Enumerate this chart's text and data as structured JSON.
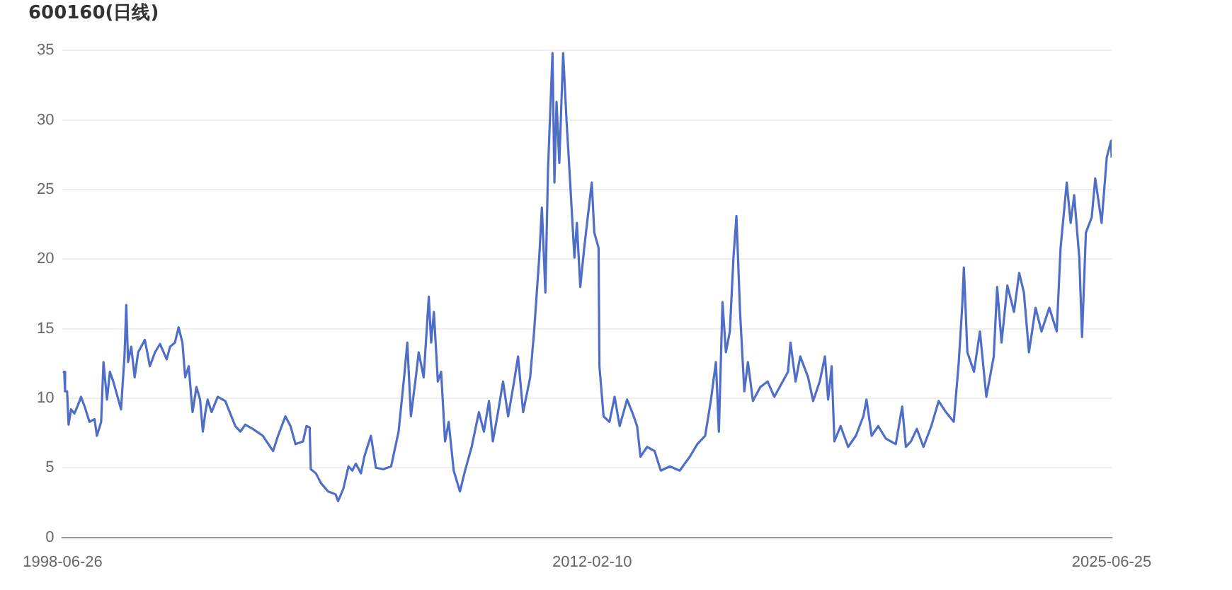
{
  "chart_data": {
    "type": "line",
    "title": "600160(日线)",
    "x": [
      "1998-06-26",
      "1998-07-11",
      "1998-07-19",
      "1998-08-07",
      "1998-08-21",
      "1998-09-13",
      "1998-10-15",
      "1998-12-02",
      "1998-12-16",
      "1999-01-19",
      "1999-03-05",
      "1999-04-22",
      "1999-05-14",
      "1999-06-23",
      "1999-07-15",
      "1999-08-17",
      "1999-09-13",
      "1999-10-15",
      "1999-11-10",
      "1999-12-27",
      "2000-01-29",
      "2000-02-14",
      "2000-03-02",
      "2000-04-01",
      "2000-05-03",
      "2000-06-05",
      "2000-08-07",
      "2000-09-23",
      "2000-11-10",
      "2000-12-27",
      "2001-02-28",
      "2001-04-01",
      "2001-05-17",
      "2001-06-20",
      "2001-07-26",
      "2001-08-21",
      "2001-09-23",
      "2001-10-29",
      "2001-12-05",
      "2002-01-08",
      "2002-02-03",
      "2002-02-25",
      "2002-03-20",
      "2002-04-26",
      "2002-06-23",
      "2002-09-02",
      "2002-10-19",
      "2002-12-05",
      "2003-01-22",
      "2003-03-09",
      "2003-05-17",
      "2003-08-21",
      "2003-11-25",
      "2004-01-11",
      "2004-03-20",
      "2004-05-07",
      "2004-06-23",
      "2004-09-02",
      "2004-10-04",
      "2004-11-03",
      "2004-11-14",
      "2005-01-01",
      "2005-02-17",
      "2005-04-26",
      "2005-07-04",
      "2005-07-29",
      "2005-09-16",
      "2005-11-03",
      "2005-12-09",
      "2006-01-11",
      "2006-02-28",
      "2006-04-01",
      "2006-06-02",
      "2006-07-19",
      "2006-09-27",
      "2006-12-09",
      "2007-02-17",
      "2007-04-15",
      "2007-05-10",
      "2007-06-13",
      "2007-07-29",
      "2007-08-25",
      "2007-10-11",
      "2007-11-28",
      "2007-12-20",
      "2008-01-15",
      "2008-02-21",
      "2008-03-23",
      "2008-04-29",
      "2008-06-02",
      "2008-07-19",
      "2008-09-16",
      "2008-11-03",
      "2009-01-04",
      "2009-03-13",
      "2009-04-29",
      "2009-06-16",
      "2009-07-22",
      "2009-09-09",
      "2009-10-26",
      "2009-12-13",
      "2010-02-07",
      "2010-03-16",
      "2010-05-03",
      "2010-07-08",
      "2010-08-14",
      "2010-10-01",
      "2010-10-26",
      "2010-11-28",
      "2010-12-23",
      "2011-02-03",
      "2011-02-21",
      "2011-03-13",
      "2011-04-08",
      "2011-05-14",
      "2011-06-16",
      "2011-07-19",
      "2011-08-28",
      "2011-09-20",
      "2011-10-22",
      "2011-11-28",
      "2012-02-07",
      "2012-03-02",
      "2012-04-11",
      "2012-04-19",
      "2012-05-28",
      "2012-07-22",
      "2012-09-09",
      "2012-10-26",
      "2013-01-04",
      "2013-02-21",
      "2013-04-08",
      "2013-05-10",
      "2013-07-11",
      "2013-09-20",
      "2013-11-17",
      "2014-02-10",
      "2014-05-14",
      "2014-08-17",
      "2014-10-26",
      "2015-01-08",
      "2015-03-02",
      "2015-04-19",
      "2015-05-17",
      "2015-06-20",
      "2015-07-22",
      "2015-08-28",
      "2015-10-01",
      "2015-10-29",
      "2015-12-02",
      "2016-01-11",
      "2016-02-14",
      "2016-04-01",
      "2016-06-09",
      "2016-08-17",
      "2016-10-19",
      "2017-02-25",
      "2017-03-20",
      "2017-05-07",
      "2017-06-20",
      "2017-09-02",
      "2017-10-19",
      "2017-12-20",
      "2018-02-07",
      "2018-03-09",
      "2018-04-11",
      "2018-05-07",
      "2018-07-04",
      "2018-09-13",
      "2018-11-25",
      "2019-02-03",
      "2019-03-05",
      "2019-04-22",
      "2019-06-23",
      "2019-09-02",
      "2019-12-05",
      "2020-02-03",
      "2020-03-09",
      "2020-04-26",
      "2020-06-20",
      "2020-08-21",
      "2020-11-03",
      "2021-01-11",
      "2021-03-20",
      "2021-06-02",
      "2021-07-19",
      "2021-08-21",
      "2021-09-05",
      "2021-10-08",
      "2021-12-09",
      "2022-02-03",
      "2022-04-04",
      "2022-06-13",
      "2022-07-15",
      "2022-08-25",
      "2022-10-19",
      "2022-12-20",
      "2023-02-07",
      "2023-03-23",
      "2023-05-10",
      "2023-07-11",
      "2023-09-05",
      "2023-11-17",
      "2024-01-26",
      "2024-03-02",
      "2024-04-29",
      "2024-06-05",
      "2024-07-08",
      "2024-08-25",
      "2024-09-20",
      "2024-10-26",
      "2024-12-20",
      "2025-01-22",
      "2025-03-23",
      "2025-05-10",
      "2025-06-20",
      "2025-06-25"
    ],
    "series": [
      {
        "color": "#4e6ec8",
        "values": [
          11.9,
          11.9,
          10.5,
          10.5,
          8.1,
          9.2,
          8.9,
          9.8,
          10.1,
          9.4,
          8.3,
          8.5,
          7.3,
          8.3,
          12.6,
          9.9,
          11.9,
          11.2,
          10.5,
          9.2,
          13.1,
          16.7,
          12.6,
          13.7,
          11.5,
          13.3,
          14.2,
          12.3,
          13.3,
          13.9,
          12.8,
          13.7,
          14.0,
          15.1,
          14.0,
          11.5,
          12.3,
          9.0,
          10.8,
          9.9,
          7.6,
          8.9,
          9.9,
          9.0,
          10.1,
          9.8,
          8.9,
          8.0,
          7.6,
          8.1,
          7.8,
          7.3,
          6.2,
          7.3,
          8.7,
          8.0,
          6.7,
          6.9,
          8.0,
          7.9,
          4.9,
          4.6,
          3.9,
          3.3,
          3.1,
          2.6,
          3.5,
          5.1,
          4.8,
          5.3,
          4.6,
          5.8,
          7.3,
          5.0,
          4.9,
          5.1,
          7.6,
          11.9,
          14.0,
          8.7,
          11.5,
          13.3,
          11.5,
          17.3,
          14.0,
          16.2,
          11.2,
          11.9,
          6.9,
          8.3,
          4.8,
          3.3,
          4.8,
          6.5,
          9.0,
          7.6,
          9.8,
          6.9,
          9.0,
          11.2,
          8.7,
          11.2,
          13.0,
          9.0,
          11.5,
          14.8,
          20.1,
          23.7,
          17.6,
          26.5,
          34.8,
          25.5,
          31.3,
          26.9,
          34.8,
          29.8,
          25.5,
          20.1,
          22.6,
          18.0,
          20.8,
          25.5,
          21.9,
          20.8,
          12.3,
          8.7,
          8.3,
          10.1,
          8.0,
          9.9,
          9.0,
          8.0,
          5.8,
          6.5,
          6.2,
          4.8,
          5.1,
          4.8,
          5.8,
          6.7,
          7.3,
          9.8,
          12.6,
          7.6,
          16.9,
          13.3,
          14.8,
          20.1,
          23.1,
          16.2,
          10.5,
          12.6,
          9.8,
          10.8,
          11.2,
          10.1,
          11.9,
          14.0,
          11.2,
          13.0,
          11.5,
          9.8,
          11.2,
          13.0,
          9.9,
          12.3,
          6.9,
          8.0,
          6.5,
          7.3,
          8.7,
          9.9,
          7.3,
          8.0,
          7.1,
          6.7,
          9.4,
          6.5,
          6.9,
          7.8,
          6.5,
          8.0,
          9.8,
          9.0,
          8.3,
          12.6,
          16.7,
          19.4,
          13.3,
          11.9,
          14.8,
          10.1,
          13.0,
          18.0,
          14.0,
          18.1,
          16.2,
          19.0,
          17.6,
          13.3,
          16.5,
          14.8,
          16.5,
          14.8,
          20.8,
          25.5,
          22.6,
          24.6,
          20.1,
          14.4,
          21.9,
          23.0,
          25.8,
          22.6,
          27.3,
          28.5,
          27.3
        ]
      }
    ],
    "xlim": [
      "1998-06-26",
      "2025-06-25"
    ],
    "xticks": [
      "1998-06-26",
      "2012-02-10",
      "2025-06-25"
    ],
    "ylim": [
      0,
      35
    ],
    "yticks": [
      0,
      5,
      10,
      15,
      20,
      25,
      30,
      35
    ],
    "grid": "y",
    "legend": false,
    "marker": "none",
    "line_style": "solid"
  }
}
